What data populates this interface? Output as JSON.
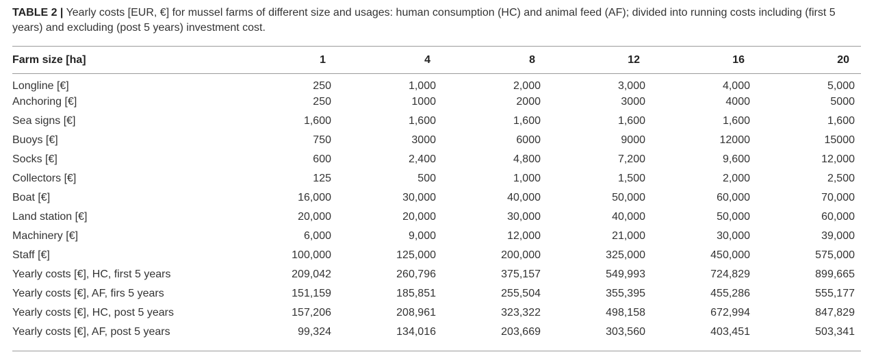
{
  "caption": {
    "label": "TABLE 2 |",
    "text": " Yearly costs [EUR, €] for mussel farms of different size and usages: human consumption (HC) and animal feed (AF); divided into running costs including (first 5 years) and excluding (post 5 years) investment cost."
  },
  "table": {
    "header": [
      "Farm size [ha]",
      "1",
      "4",
      "8",
      "12",
      "16",
      "20"
    ],
    "rows": [
      [
        "Longline [€]",
        "250",
        "1,000",
        "2,000",
        "3,000",
        "4,000",
        "5,000"
      ],
      [
        "Anchoring [€]",
        "250",
        "1000",
        "2000",
        "3000",
        "4000",
        "5000"
      ],
      [
        "Sea signs [€]",
        "1,600",
        "1,600",
        "1,600",
        "1,600",
        "1,600",
        "1,600"
      ],
      [
        "Buoys [€]",
        "750",
        "3000",
        "6000",
        "9000",
        "12000",
        "15000"
      ],
      [
        "Socks [€]",
        "600",
        "2,400",
        "4,800",
        "7,200",
        "9,600",
        "12,000"
      ],
      [
        "Collectors [€]",
        "125",
        "500",
        "1,000",
        "1,500",
        "2,000",
        "2,500"
      ],
      [
        "Boat [€]",
        "16,000",
        "30,000",
        "40,000",
        "50,000",
        "60,000",
        "70,000"
      ],
      [
        "Land station [€]",
        "20,000",
        "20,000",
        "30,000",
        "40,000",
        "50,000",
        "60,000"
      ],
      [
        "Machinery [€]",
        "6,000",
        "9,000",
        "12,000",
        "21,000",
        "30,000",
        "39,000"
      ],
      [
        "Staff [€]",
        "100,000",
        "125,000",
        "200,000",
        "325,000",
        "450,000",
        "575,000"
      ],
      [
        "Yearly costs [€], HC, first 5 years",
        "209,042",
        "260,796",
        "375,157",
        "549,993",
        "724,829",
        "899,665"
      ],
      [
        "Yearly costs [€], AF, firs 5 years",
        "151,159",
        "185,851",
        "255,504",
        "355,395",
        "455,286",
        "555,177"
      ],
      [
        "Yearly costs [€], HC, post 5 years",
        "157,206",
        "208,961",
        "323,322",
        "498,158",
        "672,994",
        "847,829"
      ],
      [
        "Yearly costs [€], AF, post 5 years",
        "99,324",
        "134,016",
        "203,669",
        "303,560",
        "403,451",
        "503,341"
      ]
    ]
  }
}
